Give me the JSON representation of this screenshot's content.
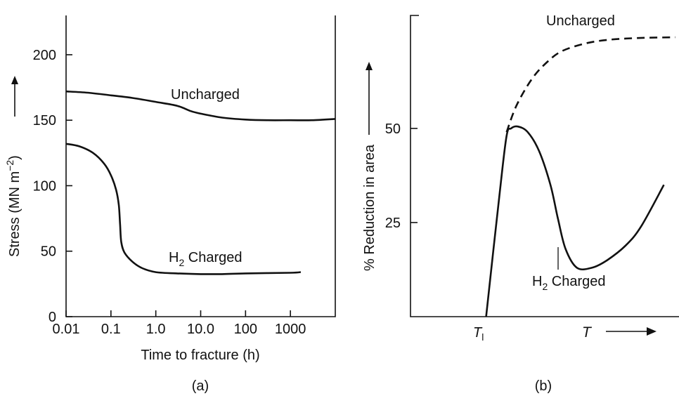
{
  "chart_data": [
    {
      "type": "line",
      "panel_label": "(a)",
      "xlabel": "Time to fracture (h)",
      "ylabel_main": "Stress (MN m",
      "ylabel_sup": "−2",
      "ylabel_end": ")",
      "x_scale": "log",
      "xlim": [
        0.01,
        10000
      ],
      "ylim": [
        0,
        230
      ],
      "x_ticks": [
        0.01,
        0.1,
        1,
        10,
        100,
        1000
      ],
      "x_tick_labels": [
        "0.01",
        "0.1",
        "1.0",
        "10.0",
        "100",
        "1000"
      ],
      "y_ticks": [
        0,
        50,
        100,
        150,
        200
      ],
      "y_tick_labels": [
        "0",
        "50",
        "100",
        "150",
        "200"
      ],
      "grid": false,
      "series": [
        {
          "name": "Uncharged",
          "style": "solid",
          "x": [
            0.01,
            0.03,
            0.1,
            0.3,
            1,
            3,
            6,
            10,
            30,
            100,
            300,
            1000,
            3000,
            10000
          ],
          "y": [
            172,
            171,
            169,
            167,
            164,
            161,
            157,
            155,
            152,
            150.5,
            150,
            150,
            150,
            151
          ]
        },
        {
          "name": "H2 Charged",
          "name_main": "H",
          "name_sub": "2",
          "name_rest": " Charged",
          "style": "solid",
          "x": [
            0.01,
            0.02,
            0.04,
            0.07,
            0.1,
            0.13,
            0.15,
            0.16,
            0.17,
            0.2,
            0.3,
            0.5,
            1,
            3,
            10,
            30,
            100,
            1000,
            1700
          ],
          "y": [
            132,
            130,
            125,
            117,
            108,
            97,
            85,
            70,
            57,
            49,
            42,
            37,
            34,
            33,
            32.5,
            32.5,
            33,
            33.5,
            34
          ]
        }
      ]
    },
    {
      "type": "line",
      "panel_label": "(b)",
      "xlabel": "T",
      "ylabel": "% Reduction in area",
      "x_ticks_labeled": [
        {
          "x": 0,
          "label_main": "T",
          "label_sub": "l"
        }
      ],
      "x_units": "relative temperature (T_l = 0)",
      "xlim": [
        -1.0,
        2.55
      ],
      "ylim": [
        0,
        80
      ],
      "y_ticks": [
        25,
        50
      ],
      "y_tick_labels": [
        "25",
        "50"
      ],
      "grid": false,
      "series": [
        {
          "name": "Uncharged",
          "style": "dashed",
          "x": [
            0.27,
            0.4,
            0.6,
            0.8,
            1.0,
            1.3,
            1.6,
            2.0,
            2.5
          ],
          "y": [
            49,
            56,
            63,
            67.5,
            70.5,
            72.5,
            73.5,
            74,
            74.2
          ]
        },
        {
          "name": "H2 Charged",
          "name_main": "H",
          "name_sub": "2",
          "name_rest": " Charged",
          "style": "solid",
          "x": [
            0,
            0.18,
            0.27,
            0.33,
            0.42,
            0.55,
            0.7,
            0.85,
            0.95,
            1.05,
            1.2,
            1.4,
            1.6,
            1.85,
            2.05,
            2.35
          ],
          "y": [
            0,
            33,
            48,
            50,
            50.5,
            49,
            44,
            35,
            26,
            18,
            13,
            13,
            15,
            19,
            24,
            35
          ]
        }
      ]
    }
  ]
}
